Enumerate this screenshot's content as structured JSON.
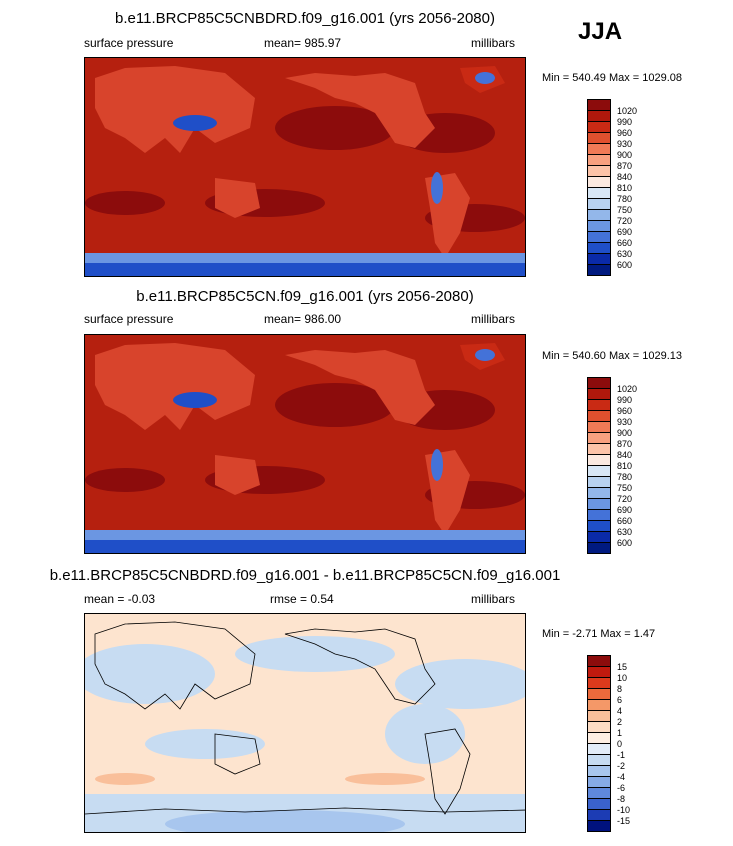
{
  "season": "JJA",
  "colors": {
    "ocean_high": "#8c0c0c",
    "ocean_mid": "#b5200f",
    "land": "#d8442c",
    "diff_pos": "#fde4cf",
    "diff_neg": "#c7dcf2"
  },
  "panels": [
    {
      "title": "b.e11.BRCP85C5CNBDRD.f09_g16.001 (yrs 2056-2080)",
      "left_label": "surface pressure",
      "mean_label": "mean= 985.97",
      "units": "millibars",
      "minmax": "Min = 540.49 Max = 1029.08",
      "colorbar": [
        "1020",
        "990",
        "960",
        "930",
        "900",
        "870",
        "840",
        "810",
        "780",
        "750",
        "720",
        "690",
        "660",
        "630",
        "600"
      ],
      "colors": [
        "#8c0c0c",
        "#b0180c",
        "#c92a14",
        "#e0502e",
        "#f07a56",
        "#f8a07f",
        "#fcc3a8",
        "#fbe9e0",
        "#d8e7f6",
        "#b8d2f0",
        "#93b7ea",
        "#6b96e2",
        "#4472d8",
        "#1f4fc8",
        "#0a2aa8",
        "#001a80"
      ]
    },
    {
      "title": "b.e11.BRCP85C5CN.f09_g16.001 (yrs 2056-2080)",
      "left_label": "surface pressure",
      "mean_label": "mean= 986.00",
      "units": "millibars",
      "minmax": "Min = 540.60 Max = 1029.13",
      "colorbar": [
        "1020",
        "990",
        "960",
        "930",
        "900",
        "870",
        "840",
        "810",
        "780",
        "750",
        "720",
        "690",
        "660",
        "630",
        "600"
      ],
      "colors": [
        "#8c0c0c",
        "#b0180c",
        "#c92a14",
        "#e0502e",
        "#f07a56",
        "#f8a07f",
        "#fcc3a8",
        "#fbe9e0",
        "#d8e7f6",
        "#b8d2f0",
        "#93b7ea",
        "#6b96e2",
        "#4472d8",
        "#1f4fc8",
        "#0a2aa8",
        "#001a80"
      ]
    },
    {
      "title": "b.e11.BRCP85C5CNBDRD.f09_g16.001 - b.e11.BRCP85C5CN.f09_g16.001",
      "left_label": "mean =  -0.03",
      "mean_label": "rmse =   0.54",
      "units": "millibars",
      "minmax": "Min =  -2.71 Max =   1.47",
      "colorbar": [
        "15",
        "10",
        "8",
        "6",
        "4",
        "2",
        "1",
        "0",
        "-1",
        "-2",
        "-4",
        "-6",
        "-8",
        "-10",
        "-15"
      ],
      "colors": [
        "#8c0c0c",
        "#c01a0e",
        "#dc3a1c",
        "#ec6a3c",
        "#f49868",
        "#f9bf9a",
        "#fcdcc4",
        "#fdeee2",
        "#e2ecf8",
        "#c7dcf2",
        "#a8c6ee",
        "#86aae6",
        "#5f88dc",
        "#3a62cc",
        "#1c3cb4",
        "#00127e"
      ]
    }
  ]
}
